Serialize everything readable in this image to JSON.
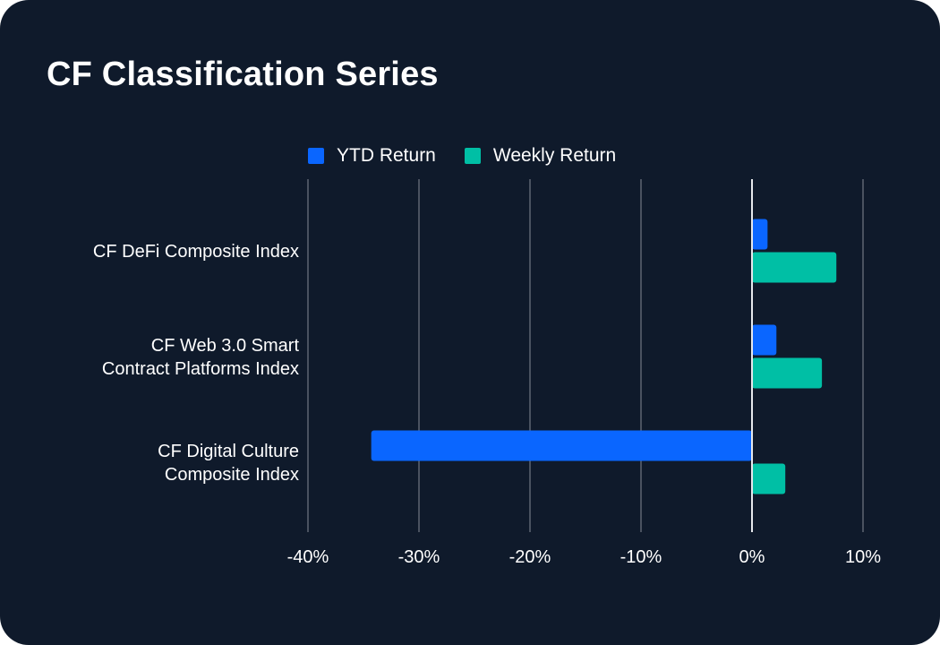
{
  "title": "CF Classification Series",
  "chart_data": {
    "type": "bar",
    "orientation": "horizontal",
    "title": "CF Classification Series",
    "categories": [
      [
        "CF DeFi Composite Index"
      ],
      [
        "CF Web 3.0 Smart",
        "Contract Platforms Index"
      ],
      [
        "CF Digital Culture",
        "Composite Index"
      ]
    ],
    "series": [
      {
        "name": "YTD Return",
        "color": "#0a66ff",
        "values": [
          1.4,
          2.2,
          -34.3
        ]
      },
      {
        "name": "Weekly Return",
        "color": "#00bfa5",
        "values": [
          7.6,
          6.3,
          3.0
        ]
      }
    ],
    "xlim": [
      -40,
      10
    ],
    "xticks": [
      -40,
      -30,
      -20,
      -10,
      0,
      10
    ],
    "xtick_labels": [
      "-40%",
      "-30%",
      "-20%",
      "-10%",
      "0%",
      "10%"
    ],
    "grid": true,
    "legend": "top-center"
  }
}
